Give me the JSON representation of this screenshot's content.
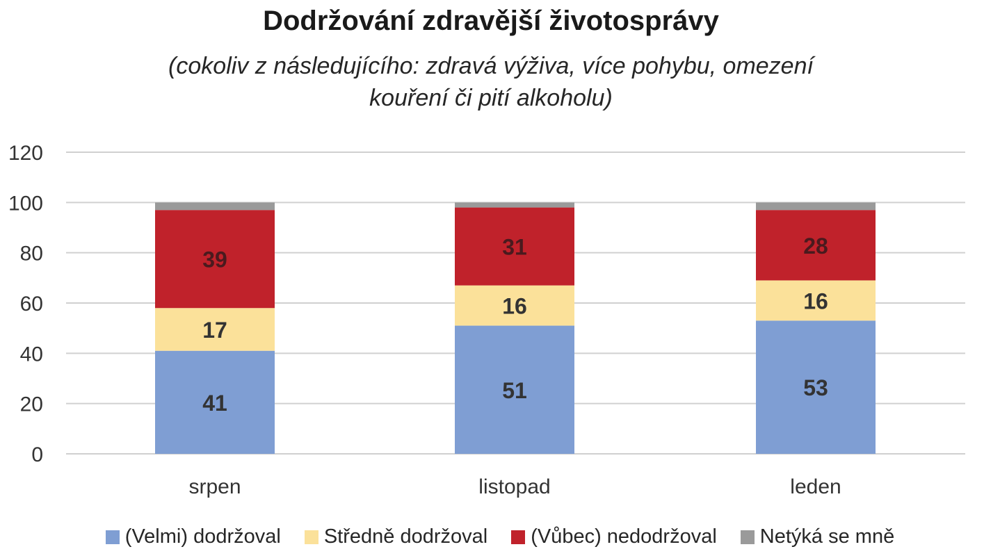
{
  "chart_data": {
    "type": "bar",
    "stacked": true,
    "title": "Dodržování zdravější životosprávy",
    "subtitle_lines": [
      "(cokoliv z následujícího: zdravá výživa, více pohybu, omezení",
      "kouření či pití alkoholu)"
    ],
    "categories": [
      "srpen",
      "listopad",
      "leden"
    ],
    "series": [
      {
        "name": "(Velmi) dodržoval",
        "color": "#7f9ed3",
        "values": [
          41,
          51,
          53
        ],
        "labels": [
          "41",
          "51",
          "53"
        ]
      },
      {
        "name": "Středně dodržoval",
        "color": "#fbe19a",
        "values": [
          17,
          16,
          16
        ],
        "labels": [
          "17",
          "16",
          "16"
        ]
      },
      {
        "name": "(Vůbec) nedodržoval",
        "color": "#c0222b",
        "values": [
          39,
          31,
          28
        ],
        "labels": [
          "39",
          "31",
          "28"
        ]
      },
      {
        "name": "Netýká se mně",
        "color": "#9a9a9a",
        "values": [
          3,
          2,
          3
        ],
        "labels": null
      }
    ],
    "ylim": [
      0,
      120
    ],
    "yticks": [
      0,
      20,
      40,
      60,
      80,
      100,
      120
    ],
    "grid": true,
    "legend_position": "bottom"
  }
}
